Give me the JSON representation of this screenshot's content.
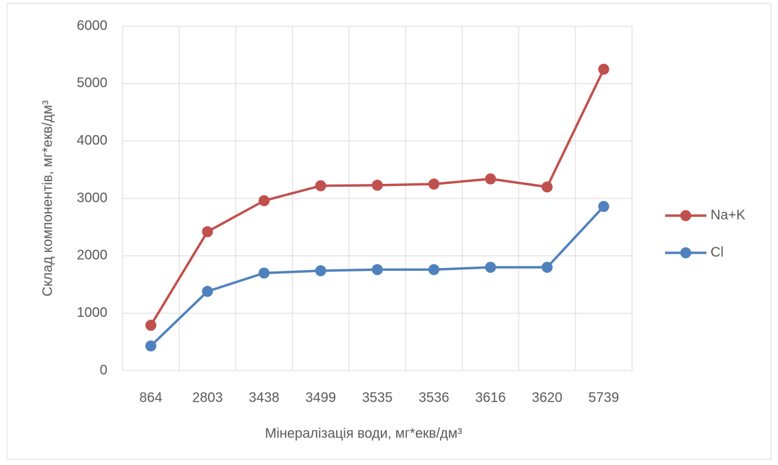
{
  "chart_data": {
    "type": "line",
    "xlabel": "Мінералізація води, мг*екв/дм³",
    "ylabel": "Склад компонентів, мг*екв/дм³",
    "categories": [
      "864",
      "2803",
      "3438",
      "3499",
      "3535",
      "3536",
      "3616",
      "3620",
      "5739"
    ],
    "series": [
      {
        "name": "Na+K",
        "color": "#c0504d",
        "values": [
          790,
          2420,
          2960,
          3220,
          3230,
          3250,
          3340,
          3200,
          5250
        ]
      },
      {
        "name": "Cl",
        "color": "#4f81bd",
        "values": [
          430,
          1380,
          1700,
          1740,
          1760,
          1760,
          1800,
          1800,
          2860
        ]
      }
    ],
    "ylim": [
      0,
      6000
    ],
    "yticks": [
      0,
      1000,
      2000,
      3000,
      4000,
      5000,
      6000
    ],
    "grid": true,
    "legend": "right"
  }
}
